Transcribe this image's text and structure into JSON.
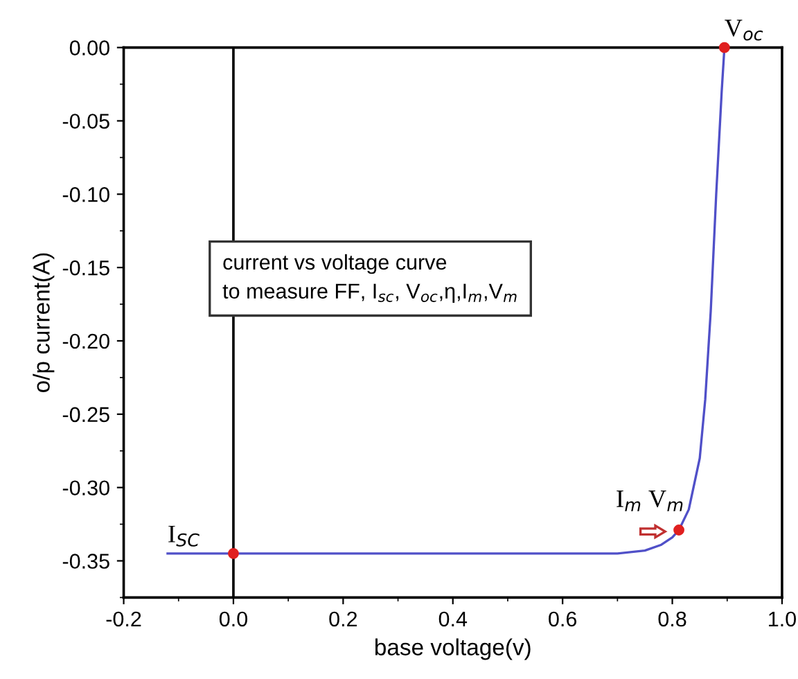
{
  "chart_data": {
    "type": "line",
    "xlabel": "base voltage(v)",
    "ylabel": "o/p current(A)",
    "xlim": [
      -0.2,
      1.0
    ],
    "xticks": [
      -0.2,
      {
        "value": 0.0,
        "label": "0.0"
      },
      0.2,
      0.4,
      0.6,
      0.8,
      {
        "value": 1.0,
        "label": "1.0"
      }
    ],
    "ylim": [
      -0.375,
      0.0
    ],
    "yticks": [
      {
        "value": 0.0,
        "label": "0.00"
      },
      -0.05,
      {
        "value": -0.1,
        "label": "-0.10"
      },
      -0.15,
      {
        "value": -0.2,
        "label": "-0.20"
      },
      -0.25,
      {
        "value": -0.3,
        "label": "-0.30"
      },
      -0.35
    ],
    "series": [
      {
        "color": "#5050c8",
        "x": [
          -0.12,
          0.2,
          0.4,
          0.6,
          0.7,
          0.75,
          0.78,
          0.8,
          0.812,
          0.83,
          0.85,
          0.86,
          0.87,
          0.88,
          0.89,
          0.895
        ],
        "values": [
          -0.345,
          -0.345,
          -0.345,
          -0.345,
          -0.345,
          -0.343,
          -0.339,
          -0.334,
          -0.329,
          -0.315,
          -0.28,
          -0.24,
          -0.18,
          -0.1,
          -0.03,
          0.0
        ]
      },
      {
        "type": "scatter",
        "color": "#e02020",
        "x": [
          0.0,
          0.812,
          0.895
        ],
        "values": [
          -0.345,
          -0.329,
          0.0
        ]
      }
    ],
    "ref_lines": [
      {
        "axis": "x",
        "value": 0.0,
        "color": "#000000"
      }
    ],
    "annotations": [
      {
        "text": "I$_{SC}$",
        "x": -0.12,
        "y": -0.345
      },
      {
        "text": "V$_{oc}$",
        "x": 0.895,
        "y": 0.0
      },
      {
        "text": "I$_{m}$ V$_{m}$",
        "x": 0.812,
        "y": -0.329
      },
      "current vs voltage curve\nto measure FF, I$_{sc}$, V$_{oc}$,η,I$_{m}$,V$_{m}$"
    ],
    "grid": false
  }
}
